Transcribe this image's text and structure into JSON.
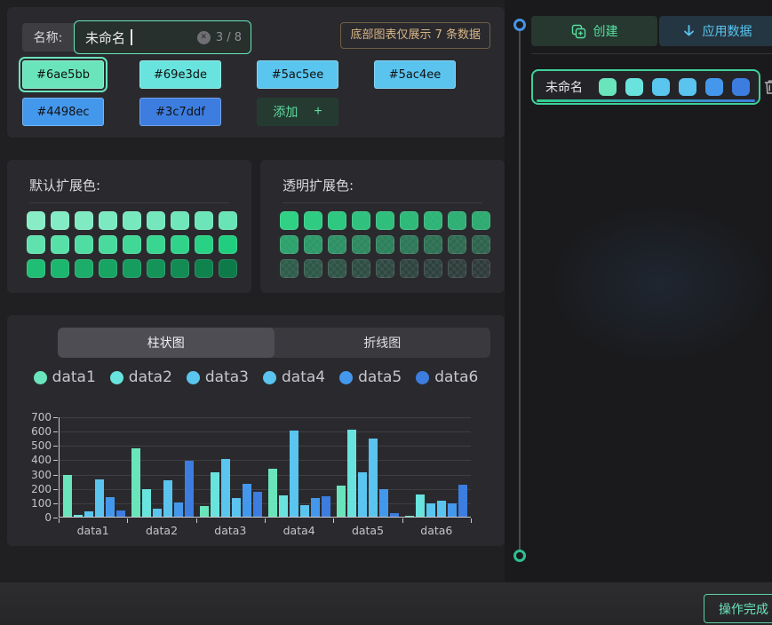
{
  "header": {
    "name_label": "名称:",
    "name_value": "未命名",
    "char_counter": "3 / 8",
    "notice": "底部图表仅展示 7 条数据",
    "palette": [
      "#6ae5bb",
      "#69e3de",
      "#5ac5ee",
      "#5ac4ee",
      "#4498ec",
      "#3c7ddf"
    ],
    "selected_index": 0,
    "add_label": "添加"
  },
  "default_extension": {
    "title": "默认扩展色:",
    "colors": [
      "#88edc7",
      "#84ecc5",
      "#80ebc3",
      "#7ceac1",
      "#78e9bf",
      "#74e8bc",
      "#70e7ba",
      "#6ce6b8",
      "#68e4b6",
      "#60e2af",
      "#58e0a9",
      "#50dda3",
      "#48db9d",
      "#41d897",
      "#39d691",
      "#31d38b",
      "#29d185",
      "#21ce7f",
      "#1fbe74",
      "#1db66f",
      "#1bad69",
      "#18a564",
      "#169c5f",
      "#149459",
      "#128b54",
      "#0f834e",
      "#0d7a49"
    ]
  },
  "transparent_extension": {
    "title": "透明扩展色:",
    "colors": [
      "rgba(47,209,133,1)",
      "rgba(47,209,133,0.97)",
      "rgba(47,209,133,0.94)",
      "rgba(47,209,133,0.91)",
      "rgba(47,209,133,0.88)",
      "rgba(47,209,133,0.85)",
      "rgba(47,209,133,0.82)",
      "rgba(47,209,133,0.79)",
      "rgba(47,209,133,0.76)",
      "rgba(47,209,133,0.70)",
      "rgba(47,209,133,0.65)",
      "rgba(47,209,133,0.60)",
      "rgba(47,209,133,0.55)",
      "rgba(47,209,133,0.50)",
      "rgba(47,209,133,0.45)",
      "rgba(47,209,133,0.40)",
      "rgba(47,209,133,0.36)",
      "rgba(47,209,133,0.32)",
      "rgba(47,209,133,0.28)",
      "rgba(47,209,133,0.25)",
      "rgba(47,209,133,0.22)",
      "rgba(47,209,133,0.19)",
      "rgba(47,209,133,0.16)",
      "rgba(47,209,133,0.13)",
      "rgba(47,209,133,0.11)",
      "rgba(47,209,133,0.09)",
      "rgba(47,209,133,0.07)"
    ]
  },
  "chart_panel": {
    "tabs": [
      {
        "label": "柱状图",
        "active": true
      },
      {
        "label": "折线图",
        "active": false
      }
    ]
  },
  "chart_data": {
    "type": "bar",
    "categories": [
      "data1",
      "data2",
      "data3",
      "data4",
      "data5",
      "data6"
    ],
    "series": [
      {
        "name": "data1",
        "color": "#6ae5bb",
        "values": [
          290,
          480,
          75,
          335,
          215,
          8
        ]
      },
      {
        "name": "data2",
        "color": "#69e3de",
        "values": [
          10,
          190,
          310,
          150,
          605,
          155
        ]
      },
      {
        "name": "data3",
        "color": "#5ac5ee",
        "values": [
          35,
          55,
          400,
          600,
          310,
          95
        ]
      },
      {
        "name": "data4",
        "color": "#5ac4ee",
        "values": [
          260,
          255,
          130,
          80,
          545,
          110
        ]
      },
      {
        "name": "data5",
        "color": "#4498ec",
        "values": [
          135,
          100,
          230,
          130,
          195,
          95
        ]
      },
      {
        "name": "data6",
        "color": "#3c7ddf",
        "values": [
          45,
          390,
          175,
          140,
          25,
          225
        ]
      }
    ],
    "ylim": [
      0,
      700
    ],
    "ytick_step": 100,
    "legend_position": "top",
    "grid": true
  },
  "right_panel": {
    "create_label": "创建",
    "apply_label": "应用数据",
    "list": [
      {
        "name": "未命名",
        "colors": [
          "#6ae5bb",
          "#69e3de",
          "#5ac5ee",
          "#5ac4ee",
          "#4498ec",
          "#3c7ddf"
        ]
      }
    ]
  },
  "footer": {
    "done_label": "操作完成"
  },
  "colors": {
    "accent_green": "#6ae5bb",
    "accent_blue": "#4498ec",
    "notice_text": "#d9b586"
  }
}
